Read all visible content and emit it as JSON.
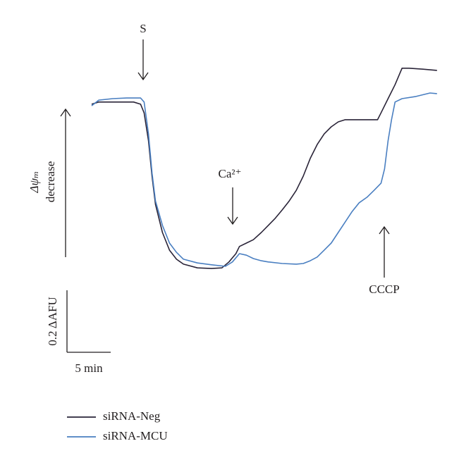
{
  "chart_data": {
    "type": "line",
    "xlim": [
      0,
      40
    ],
    "ylim": [
      0,
      0.75
    ],
    "series": [
      {
        "name": "siRNA-Neg",
        "color": "#2a2438",
        "x": [
          0,
          0.8,
          2.4,
          4.8,
          5.6,
          6.0,
          6.5,
          6.9,
          7.3,
          8.1,
          8.9,
          9.7,
          10.5,
          12.1,
          13.7,
          14.9,
          15.7,
          16.5,
          16.9,
          17.7,
          18.5,
          19.4,
          20.2,
          21.0,
          21.8,
          22.6,
          23.4,
          24.2,
          25.0,
          25.8,
          26.6,
          27.4,
          28.2,
          29.0,
          29.8,
          31.5,
          32.7,
          33.1,
          33.9,
          34.7,
          35.5,
          36.3,
          37.9,
          39.5
        ],
        "values": [
          0.573,
          0.58,
          0.58,
          0.58,
          0.573,
          0.545,
          0.455,
          0.341,
          0.25,
          0.159,
          0.102,
          0.073,
          0.057,
          0.045,
          0.043,
          0.045,
          0.064,
          0.091,
          0.114,
          0.125,
          0.136,
          0.159,
          0.182,
          0.205,
          0.232,
          0.261,
          0.295,
          0.341,
          0.398,
          0.443,
          0.477,
          0.5,
          0.516,
          0.523,
          0.523,
          0.523,
          0.523,
          0.545,
          0.591,
          0.636,
          0.689,
          0.689,
          0.686,
          0.682
        ]
      },
      {
        "name": "siRNA-MCU",
        "color": "#4a7fc1",
        "x": [
          0,
          0.8,
          2.4,
          4.0,
          5.6,
          6.0,
          6.5,
          6.9,
          7.3,
          8.1,
          8.9,
          9.7,
          10.5,
          12.1,
          13.7,
          15.3,
          16.1,
          16.9,
          17.7,
          18.5,
          19.4,
          20.2,
          21.8,
          23.4,
          24.2,
          25.0,
          25.8,
          26.6,
          27.4,
          28.2,
          29.0,
          29.8,
          30.6,
          31.5,
          32.3,
          33.1,
          33.5,
          33.9,
          34.3,
          34.7,
          35.5,
          37.1,
          38.7,
          39.5
        ],
        "values": [
          0.568,
          0.586,
          0.591,
          0.593,
          0.593,
          0.58,
          0.477,
          0.352,
          0.261,
          0.182,
          0.125,
          0.095,
          0.073,
          0.061,
          0.055,
          0.05,
          0.064,
          0.091,
          0.086,
          0.075,
          0.068,
          0.064,
          0.059,
          0.057,
          0.059,
          0.068,
          0.08,
          0.102,
          0.125,
          0.159,
          0.193,
          0.227,
          0.255,
          0.273,
          0.295,
          0.318,
          0.364,
          0.455,
          0.523,
          0.58,
          0.591,
          0.598,
          0.609,
          0.607
        ]
      }
    ],
    "annotations": [
      "S",
      "Ca²⁺",
      "CCCP"
    ],
    "y_label": [
      "Δψₘ",
      "decrease"
    ],
    "scale_bar": {
      "y": {
        "value": 0.2,
        "label": "0.2 ΔAFU"
      },
      "x": {
        "value": 5,
        "label": "5 min"
      }
    }
  }
}
